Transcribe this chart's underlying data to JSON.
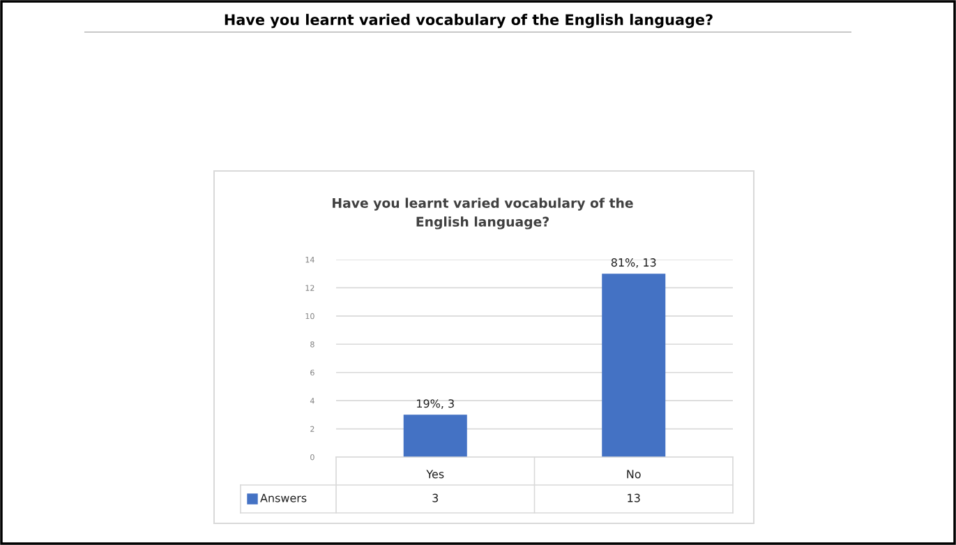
{
  "chart_data": {
    "type": "bar",
    "title": "Have you learnt varied vocabulary of the English language?",
    "subtitle": "Have you learnt varied vocabulary of the\nEnglish language?",
    "categories": [
      "Yes",
      "No"
    ],
    "series": [
      {
        "name": "Answers",
        "color": "#4472c4",
        "values": [
          3,
          13
        ],
        "value_labels": [
          "19%, 3",
          "81%, 13"
        ]
      }
    ],
    "annotations": [
      "3",
      "13"
    ],
    "ylim": [
      0,
      14
    ],
    "yticks": [
      0,
      2,
      4,
      6,
      8,
      10,
      12,
      14
    ],
    "grid": "y",
    "legend": "bottom",
    "data_labels": true
  }
}
